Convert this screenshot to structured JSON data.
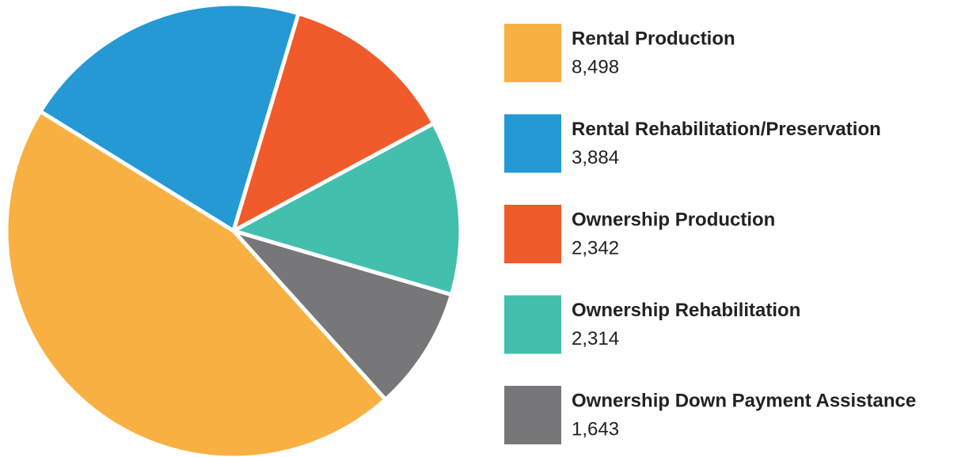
{
  "chart_data": {
    "type": "pie",
    "categories": [
      "Rental Production",
      "Rental Rehabilitation/Preservation",
      "Ownership Production",
      "Ownership Rehabilitation",
      "Ownership Down Payment Assistance"
    ],
    "values": [
      8498,
      3884,
      2342,
      2314,
      1643
    ],
    "value_labels": [
      "8,498",
      "3,884",
      "2,342",
      "2,314",
      "1,643"
    ],
    "colors": [
      "#f9b042",
      "#2499d4",
      "#f15a2b",
      "#43bfae",
      "#77777a"
    ],
    "legend": "right"
  }
}
